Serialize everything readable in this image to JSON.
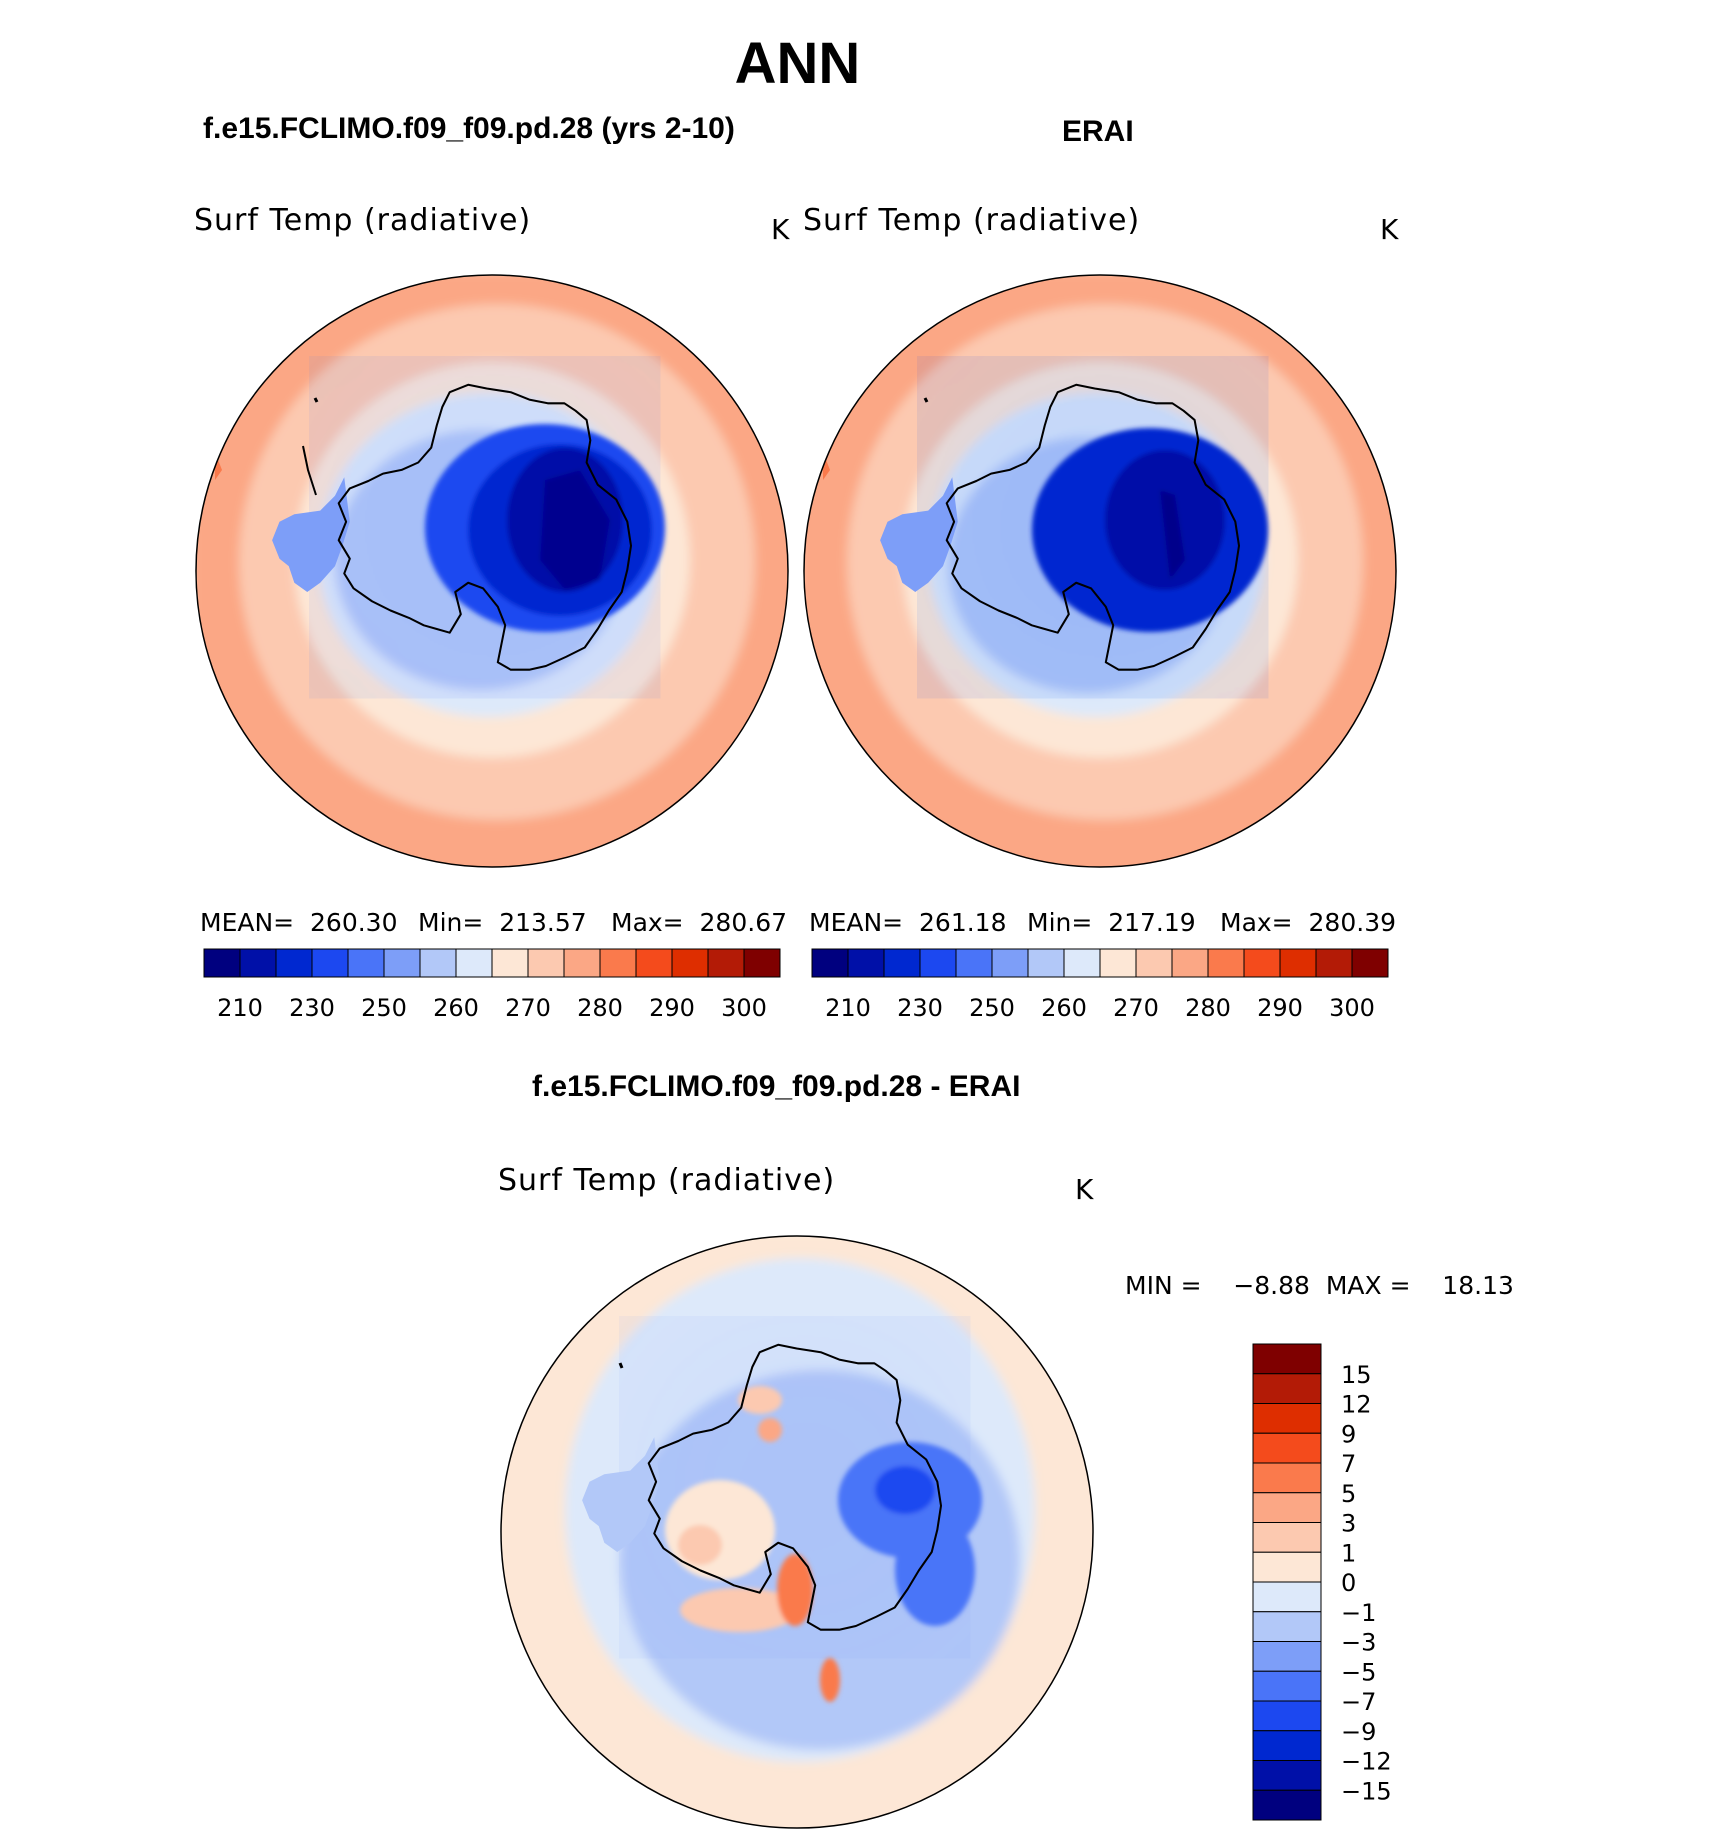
{
  "page": {
    "title": "ANN",
    "diff_title": "f.e15.FCLIMO.f09_f09.pd.28 - ERAI"
  },
  "panels": [
    {
      "title": "f.e15.FCLIMO.f09_f09.pd.28 (yrs 2-10)",
      "variable": "Surf Temp (radiative)",
      "units": "K",
      "stats": {
        "mean": "MEAN=  260.30",
        "min": "Min=  213.57",
        "max": "Max=  280.67"
      }
    },
    {
      "title": "ERAI",
      "variable": "Surf Temp (radiative)",
      "units": "K",
      "stats": {
        "mean": "MEAN=  261.18",
        "min": "Min=  217.19",
        "max": "Max=  280.39"
      }
    }
  ],
  "diff_panel": {
    "variable": "Surf Temp (radiative)",
    "units": "K",
    "minmax": "MIN =    −8.88  MAX =    18.13"
  },
  "colorbar_top": {
    "colors": [
      "#00007f",
      "#0010a8",
      "#0028d0",
      "#1c48f0",
      "#4a74f8",
      "#7d9ef8",
      "#b2c8f8",
      "#dde9fa",
      "#fde7d6",
      "#fcc9b0",
      "#fba785",
      "#fa7a4c",
      "#f44b1c",
      "#de2e00",
      "#b31b06",
      "#7f0000"
    ],
    "tick_labels": [
      "210",
      "230",
      "250",
      "260",
      "270",
      "280",
      "290",
      "300"
    ]
  },
  "colorbar_diff": {
    "colors": [
      "#00007f",
      "#0010a8",
      "#0028d0",
      "#1c48f0",
      "#4a74f8",
      "#7d9ef8",
      "#b2c8f8",
      "#dde9fa",
      "#fde7d6",
      "#fcc9b0",
      "#fba785",
      "#fa7a4c",
      "#f44b1c",
      "#de2e00",
      "#b31b06",
      "#7f0000"
    ],
    "tick_labels": [
      "15",
      "12",
      "9",
      "7",
      "5",
      "3",
      "1",
      "0",
      "−1",
      "−3",
      "−5",
      "−7",
      "−9",
      "−12",
      "−15"
    ]
  }
}
